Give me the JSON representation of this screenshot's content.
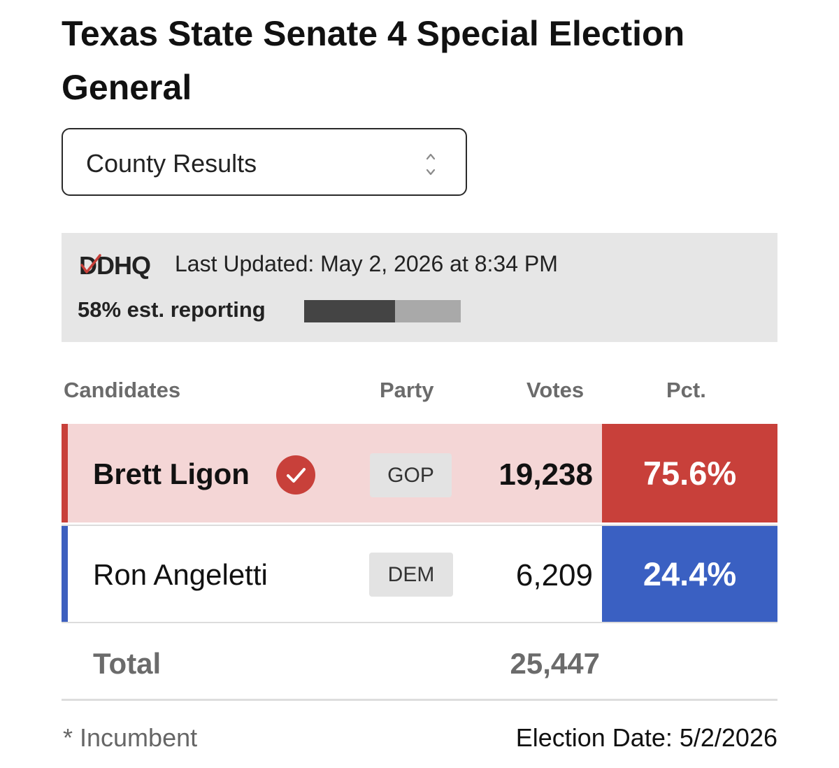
{
  "title": "Texas State Senate 4 Special Election General",
  "view_select": {
    "value": "County Results"
  },
  "source": {
    "logo_text": "DDHQ",
    "last_updated": "Last Updated: May 2, 2026 at 8:34 PM"
  },
  "reporting": {
    "label": "58% est. reporting",
    "fraction": 0.58
  },
  "table": {
    "headers": {
      "candidates": "Candidates",
      "party": "Party",
      "votes": "Votes",
      "pct": "Pct."
    },
    "rows": [
      {
        "name": "Brett Ligon",
        "winner": true,
        "party": "GOP",
        "votes": "19,238",
        "pct": "75.6%"
      },
      {
        "name": "Ron Angeletti",
        "winner": false,
        "party": "DEM",
        "votes": "6,209",
        "pct": "24.4%"
      }
    ],
    "total": {
      "label": "Total",
      "votes": "25,447"
    }
  },
  "footer": {
    "incumbent_note": "* Incumbent",
    "election_date": "Election Date: 5/2/2026"
  },
  "colors": {
    "gop": "#c8403a",
    "gop_light": "#f4d6d6",
    "dem": "#3a60c2",
    "dem_accent": "#3d5fbf",
    "progress_fill": "#444444",
    "progress_track": "#a9a9a9",
    "status_bg": "#e6e6e6"
  }
}
